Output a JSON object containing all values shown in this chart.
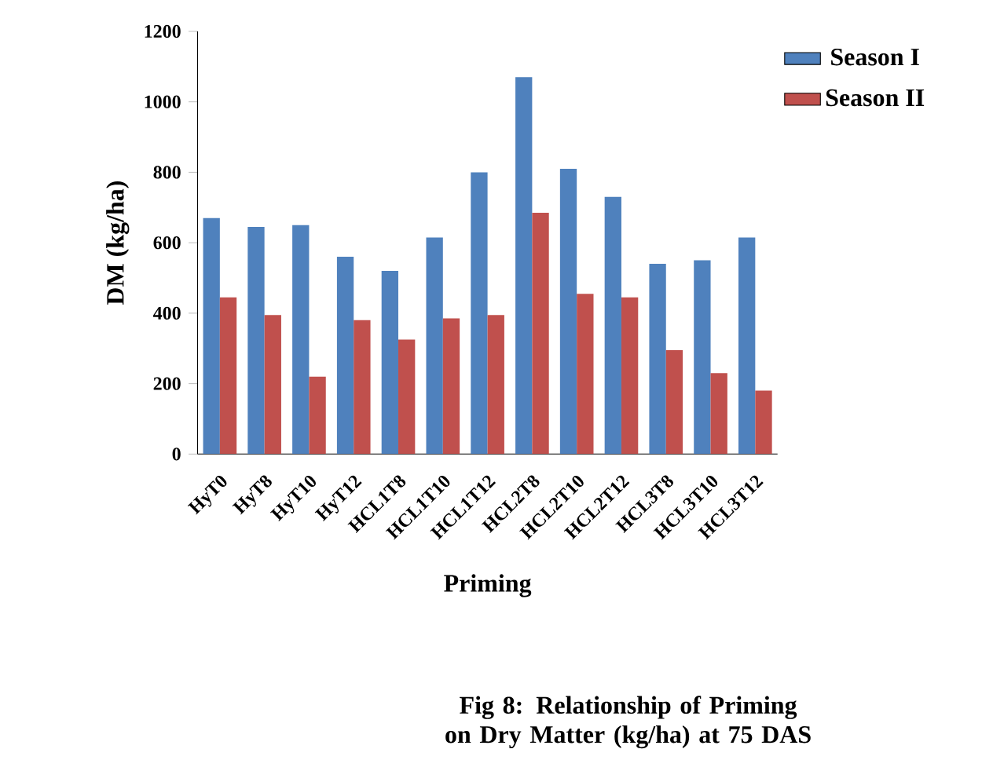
{
  "chart_data": {
    "type": "bar",
    "ylabel": "DM (kg/ha)",
    "xlabel": "Priming",
    "categories": [
      "HyT0",
      "HyT8",
      "HyT10",
      "HyT12",
      "HCL1T8",
      "HCL1T10",
      "HCL1T12",
      "HCL2T8",
      "HCL2T10",
      "HCL2T12",
      "HCL3T8",
      "HCL3T10",
      "HCL3T12"
    ],
    "series": [
      {
        "name": "Season I",
        "color": "#4f81bd",
        "values": [
          670,
          645,
          650,
          560,
          520,
          615,
          800,
          1070,
          810,
          730,
          540,
          550,
          615
        ]
      },
      {
        "name": "Season II",
        "color": "#c0504d",
        "values": [
          445,
          395,
          220,
          380,
          325,
          385,
          395,
          685,
          455,
          445,
          295,
          230,
          180
        ]
      }
    ],
    "ylim": [
      0,
      1200
    ],
    "yticks": [
      0,
      200,
      400,
      600,
      800,
      1000,
      1200
    ],
    "grid": false,
    "legend": "top right",
    "annotations": [
      "Fig 8: Relationship of Priming on Dry Matter (kg/ha) at 75 DAS"
    ]
  }
}
